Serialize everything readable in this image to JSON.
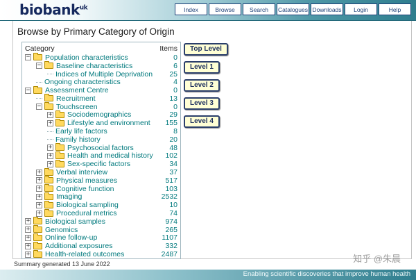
{
  "header": {
    "logo": "biobank",
    "logo_sup": "uk",
    "nav": [
      "Index",
      "Browse",
      "Search",
      "Catalogues",
      "Downloads",
      "Login",
      "Help"
    ]
  },
  "page": {
    "title": "Browse by Primary Category of Origin",
    "tree_header": {
      "category": "Category",
      "items": "Items"
    },
    "level_buttons": [
      "Top Level",
      "Level 1",
      "Level 2",
      "Level 3",
      "Level 4"
    ],
    "footer_note": "Summary generated 13 June 2022"
  },
  "tree": [
    {
      "label": "Population characteristics",
      "items": 0,
      "level": 0,
      "toggle": "minus",
      "icon": "folder"
    },
    {
      "label": "Baseline characteristics",
      "items": 6,
      "level": 1,
      "toggle": "minus",
      "icon": "folder"
    },
    {
      "label": "Indices of Multiple Deprivation",
      "items": 25,
      "level": 2,
      "toggle": "none",
      "icon": "none"
    },
    {
      "label": "Ongoing characteristics",
      "items": 4,
      "level": 1,
      "toggle": "none",
      "icon": "none"
    },
    {
      "label": "Assessment Centre",
      "items": 0,
      "level": 0,
      "toggle": "minus",
      "icon": "folder"
    },
    {
      "label": "Recruitment",
      "items": 13,
      "level": 1,
      "toggle": "none",
      "icon": "folder"
    },
    {
      "label": "Touchscreen",
      "items": 0,
      "level": 1,
      "toggle": "minus",
      "icon": "folder"
    },
    {
      "label": "Sociodemographics",
      "items": 29,
      "level": 2,
      "toggle": "plus",
      "icon": "folder"
    },
    {
      "label": "Lifestyle and environment",
      "items": 155,
      "level": 2,
      "toggle": "plus",
      "icon": "folder"
    },
    {
      "label": "Early life factors",
      "items": 8,
      "level": 2,
      "toggle": "none",
      "icon": "none"
    },
    {
      "label": "Family history",
      "items": 20,
      "level": 2,
      "toggle": "none",
      "icon": "none"
    },
    {
      "label": "Psychosocial factors",
      "items": 48,
      "level": 2,
      "toggle": "plus",
      "icon": "folder"
    },
    {
      "label": "Health and medical history",
      "items": 102,
      "level": 2,
      "toggle": "plus",
      "icon": "folder"
    },
    {
      "label": "Sex-specific factors",
      "items": 34,
      "level": 2,
      "toggle": "plus",
      "icon": "folder"
    },
    {
      "label": "Verbal interview",
      "items": 37,
      "level": 1,
      "toggle": "plus",
      "icon": "folder"
    },
    {
      "label": "Physical measures",
      "items": 517,
      "level": 1,
      "toggle": "plus",
      "icon": "folder"
    },
    {
      "label": "Cognitive function",
      "items": 103,
      "level": 1,
      "toggle": "plus",
      "icon": "folder"
    },
    {
      "label": "Imaging",
      "items": 2532,
      "level": 1,
      "toggle": "plus",
      "icon": "folder"
    },
    {
      "label": "Biological sampling",
      "items": 10,
      "level": 1,
      "toggle": "plus",
      "icon": "folder"
    },
    {
      "label": "Procedural metrics",
      "items": 74,
      "level": 1,
      "toggle": "plus",
      "icon": "folder"
    },
    {
      "label": "Biological samples",
      "items": 974,
      "level": 0,
      "toggle": "plus",
      "icon": "folder"
    },
    {
      "label": "Genomics",
      "items": 265,
      "level": 0,
      "toggle": "plus",
      "icon": "folder"
    },
    {
      "label": "Online follow-up",
      "items": 1107,
      "level": 0,
      "toggle": "plus",
      "icon": "folder"
    },
    {
      "label": "Additional exposures",
      "items": 332,
      "level": 0,
      "toggle": "plus",
      "icon": "folder"
    },
    {
      "label": "Health-related outcomes",
      "items": 2487,
      "level": 0,
      "toggle": "plus",
      "icon": "folder"
    }
  ],
  "bottom_bar": {
    "tagline": "Enabling scientific discoveries that improve human health"
  },
  "watermark": "知乎 @朱晨",
  "colors": {
    "tree_text_teal": "#00797d",
    "accent_navy": "#1c3f77",
    "level_button_bg": "#ffffd5",
    "header_teal": "#2e7d8e",
    "folder_yellow": "#ffd95e"
  }
}
